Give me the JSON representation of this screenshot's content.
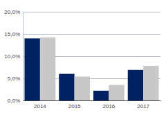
{
  "chart_data": {
    "type": "bar",
    "categories": [
      "2014",
      "2015",
      "2016",
      "2017"
    ],
    "series": [
      {
        "color": "#002060",
        "values": [
          14.0,
          6.0,
          2.2,
          6.9
        ]
      },
      {
        "color": "#c8c8c8",
        "values": [
          14.2,
          5.4,
          3.5,
          7.8
        ]
      }
    ],
    "ylim": [
      0,
      20
    ],
    "yticks": [
      {
        "value": 0,
        "label": "0,0%"
      },
      {
        "value": 5,
        "label": "5,0%"
      },
      {
        "value": 10,
        "label": "10,0%"
      },
      {
        "value": 15,
        "label": "15,0%"
      },
      {
        "value": 20,
        "label": "20,0%"
      }
    ],
    "grid": true
  }
}
